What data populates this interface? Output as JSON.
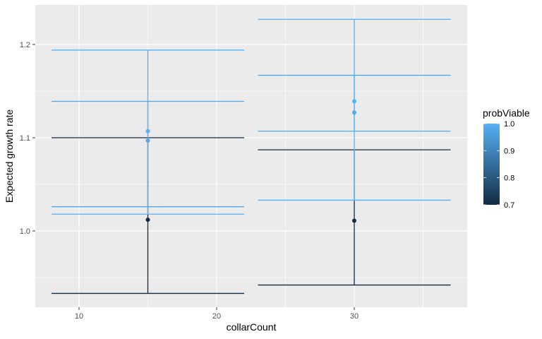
{
  "chart_data": {
    "type": "errorbar",
    "title": "",
    "xlabel": "collarCount",
    "ylabel": "Expected growth rate",
    "x_ticks": [
      10,
      20,
      30
    ],
    "y_ticks": [
      1.0,
      1.1,
      1.2
    ],
    "xlim": [
      6.8,
      38.2
    ],
    "ylim": [
      0.915,
      1.242
    ],
    "grid": true,
    "legend": {
      "title": "probViable",
      "type": "colorbar",
      "position": "right",
      "ticks": [
        0.7,
        0.8,
        0.9,
        1.0
      ],
      "low_color": "#132B43",
      "high_color": "#56B1F7"
    },
    "series": [
      {
        "x": 15,
        "y": 1.107,
        "ymin": 1.018,
        "ymax": 1.194,
        "probViable": 1.0
      },
      {
        "x": 15,
        "y": 1.097,
        "ymin": 1.026,
        "ymax": 1.139,
        "probViable": 0.98
      },
      {
        "x": 15,
        "y": 1.012,
        "ymin": 0.933,
        "ymax": 1.1,
        "probViable": 0.7
      },
      {
        "x": 30,
        "y": 1.139,
        "ymin": 1.033,
        "ymax": 1.227,
        "probViable": 1.0
      },
      {
        "x": 30,
        "y": 1.127,
        "ymin": 1.107,
        "ymax": 1.167,
        "probViable": 0.98
      },
      {
        "x": 30,
        "y": 1.011,
        "ymin": 0.942,
        "ymax": 1.087,
        "probViable": 0.7
      }
    ],
    "errorbar_halfwidth": 7
  },
  "labels": {
    "x_title": "collarCount",
    "y_title": "Expected growth rate",
    "legend_title": "probViable",
    "x_tick_labels": [
      "10",
      "20",
      "30"
    ],
    "y_tick_labels": [
      "1.0",
      "1.1",
      "1.2"
    ],
    "legend_tick_labels": [
      "1.0",
      "0.9",
      "0.8",
      "0.7"
    ]
  }
}
